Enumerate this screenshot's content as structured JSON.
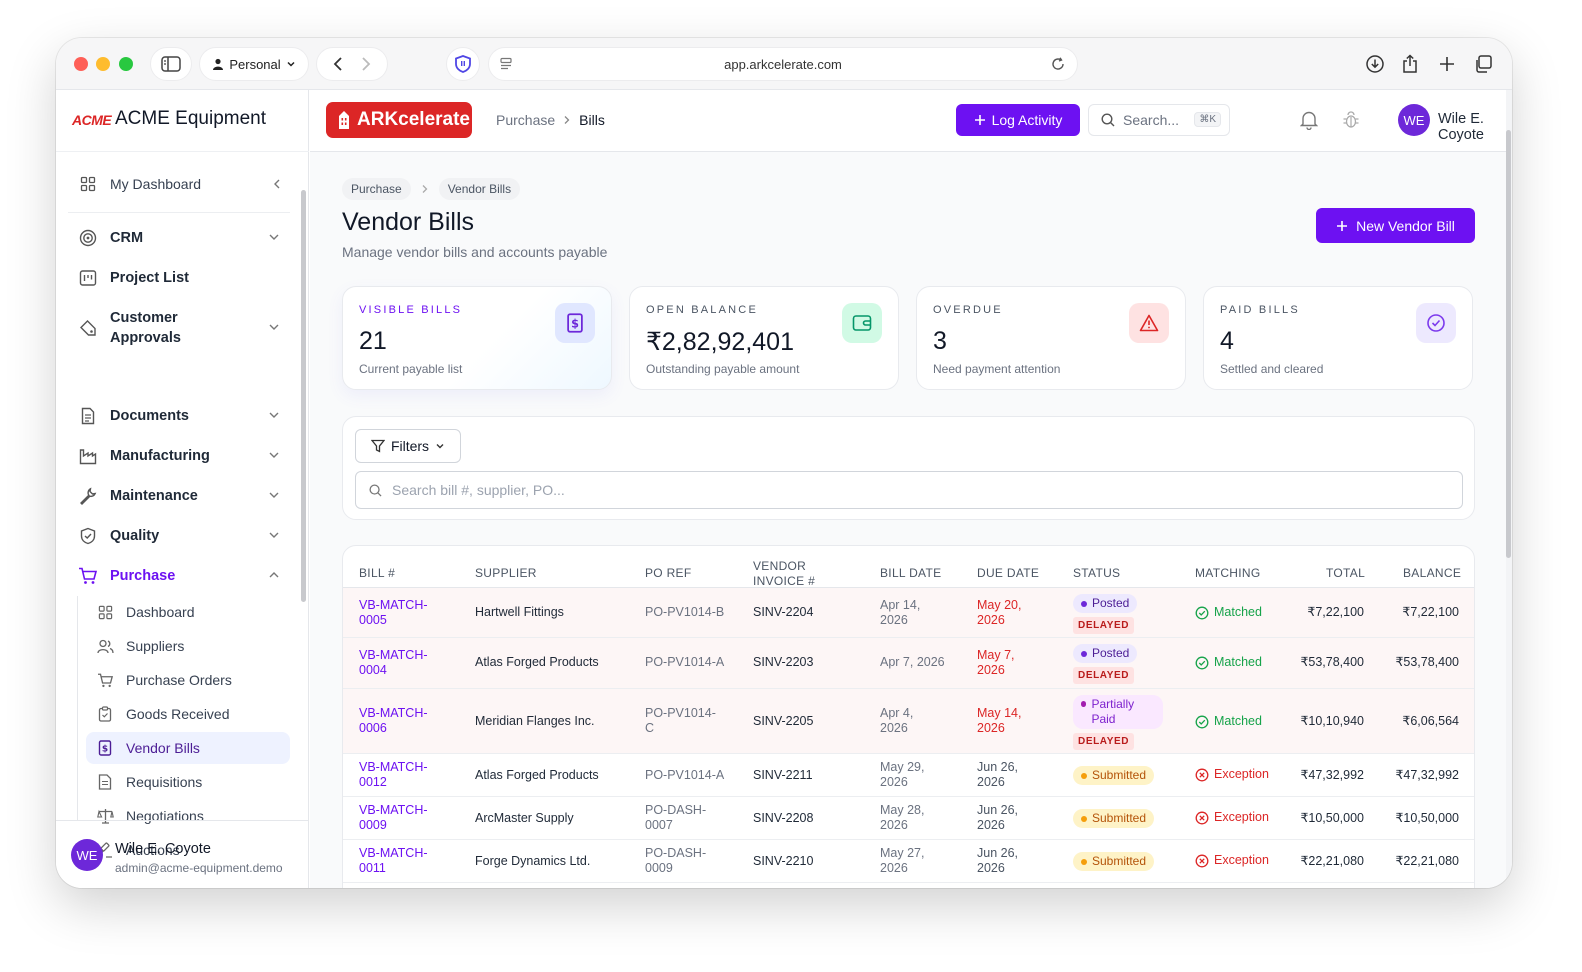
{
  "browser": {
    "profile": "Personal",
    "url": "app.arkcelerate.com"
  },
  "sidebar": {
    "brand_logo": "ACME",
    "brand_name": "ACME Equipment",
    "dashboard": "My Dashboard",
    "items": [
      {
        "label": "CRM",
        "icon": "target-icon"
      },
      {
        "label": "Project List",
        "icon": "kanban-icon"
      },
      {
        "label": "Customer Approvals",
        "icon": "tag-icon"
      },
      {
        "label": "Documents",
        "icon": "document-icon"
      },
      {
        "label": "Manufacturing",
        "icon": "factory-icon"
      },
      {
        "label": "Maintenance",
        "icon": "wrench-icon"
      },
      {
        "label": "Quality",
        "icon": "shield-check-icon"
      },
      {
        "label": "Purchase",
        "icon": "cart-icon"
      }
    ],
    "purchase_sub": [
      {
        "label": "Dashboard",
        "icon": "grid-icon"
      },
      {
        "label": "Suppliers",
        "icon": "users-icon"
      },
      {
        "label": "Purchase Orders",
        "icon": "cart-icon"
      },
      {
        "label": "Goods Received",
        "icon": "clipboard-icon"
      },
      {
        "label": "Vendor Bills",
        "icon": "bill-icon"
      },
      {
        "label": "Requisitions",
        "icon": "document-icon"
      },
      {
        "label": "Negotiations",
        "icon": "scale-icon"
      },
      {
        "label": "Auctions",
        "icon": "gavel-icon"
      }
    ],
    "user": {
      "initials": "WE",
      "name": "Wile E. Coyote",
      "email": "admin@acme-equipment.demo"
    }
  },
  "header": {
    "app_logo": "ARKcelerate",
    "breadcrumb": [
      "Purchase",
      "Bills"
    ],
    "log_activity": "Log Activity",
    "search_placeholder": "Search...",
    "search_shortcut": "⌘K",
    "user": {
      "initials": "WE",
      "name": "Wile E. Coyote"
    }
  },
  "page": {
    "breadcrumb": [
      "Purchase",
      "Vendor Bills"
    ],
    "title": "Vendor Bills",
    "subtitle": "Manage vendor bills and accounts payable",
    "new_button": "New Vendor Bill"
  },
  "kpis": [
    {
      "label": "VISIBLE BILLS",
      "value": "21",
      "sub": "Current payable list",
      "icon": "bill-icon",
      "color": "#6d28d9",
      "bg": "#e0e7ff"
    },
    {
      "label": "OPEN BALANCE",
      "value": "₹2,82,92,401",
      "sub": "Outstanding payable amount",
      "icon": "wallet-icon",
      "color": "#059669",
      "bg": "#d1fae5"
    },
    {
      "label": "OVERDUE",
      "value": "3",
      "sub": "Need payment attention",
      "icon": "warning-icon",
      "color": "#dc2626",
      "bg": "#fee2e2"
    },
    {
      "label": "PAID BILLS",
      "value": "4",
      "sub": "Settled and cleared",
      "icon": "check-circle-icon",
      "color": "#7c3aed",
      "bg": "#ede9fe"
    }
  ],
  "filters": {
    "button": "Filters",
    "search_placeholder": "Search bill #, supplier, PO..."
  },
  "table": {
    "columns": [
      "BILL #",
      "SUPPLIER",
      "PO REF",
      "VENDOR INVOICE #",
      "BILL DATE",
      "DUE DATE",
      "STATUS",
      "MATCHING",
      "TOTAL",
      "BALANCE"
    ],
    "rows": [
      {
        "bill": "VB-MATCH-0005",
        "supplier": "Hartwell Fittings",
        "po": "PO-PV1014-B",
        "invoice": "SINV-2204",
        "bill_date": "Apr 14, 2026",
        "due_date": "May 20, 2026",
        "status": "Posted",
        "delayed": "DELAYED",
        "matching": "Matched",
        "total": "₹7,22,100",
        "balance": "₹7,22,100"
      },
      {
        "bill": "VB-MATCH-0004",
        "supplier": "Atlas Forged Products",
        "po": "PO-PV1014-A",
        "invoice": "SINV-2203",
        "bill_date": "Apr 7, 2026",
        "due_date": "May 7, 2026",
        "status": "Posted",
        "delayed": "DELAYED",
        "matching": "Matched",
        "total": "₹53,78,400",
        "balance": "₹53,78,400"
      },
      {
        "bill": "VB-MATCH-0006",
        "supplier": "Meridian Flanges Inc.",
        "po": "PO-PV1014-C",
        "invoice": "SINV-2205",
        "bill_date": "Apr 4, 2026",
        "due_date": "May 14, 2026",
        "status": "Partially Paid",
        "delayed": "DELAYED",
        "matching": "Matched",
        "total": "₹10,10,940",
        "balance": "₹6,06,564"
      },
      {
        "bill": "VB-MATCH-0012",
        "supplier": "Atlas Forged Products",
        "po": "PO-PV1014-A",
        "invoice": "SINV-2211",
        "bill_date": "May 29, 2026",
        "due_date": "Jun 26, 2026",
        "status": "Submitted",
        "delayed": "",
        "matching": "Exception",
        "total": "₹47,32,992",
        "balance": "₹47,32,992"
      },
      {
        "bill": "VB-MATCH-0009",
        "supplier": "ArcMaster Supply",
        "po": "PO-DASH-0007",
        "invoice": "SINV-2208",
        "bill_date": "May 28, 2026",
        "due_date": "Jun 26, 2026",
        "status": "Submitted",
        "delayed": "",
        "matching": "Exception",
        "total": "₹10,50,000",
        "balance": "₹10,50,000"
      },
      {
        "bill": "VB-MATCH-0011",
        "supplier": "Forge Dynamics Ltd.",
        "po": "PO-DASH-0009",
        "invoice": "SINV-2210",
        "bill_date": "May 27, 2026",
        "due_date": "Jun 26, 2026",
        "status": "Submitted",
        "delayed": "",
        "matching": "Exception",
        "total": "₹22,21,080",
        "balance": "₹22,21,080"
      }
    ]
  }
}
